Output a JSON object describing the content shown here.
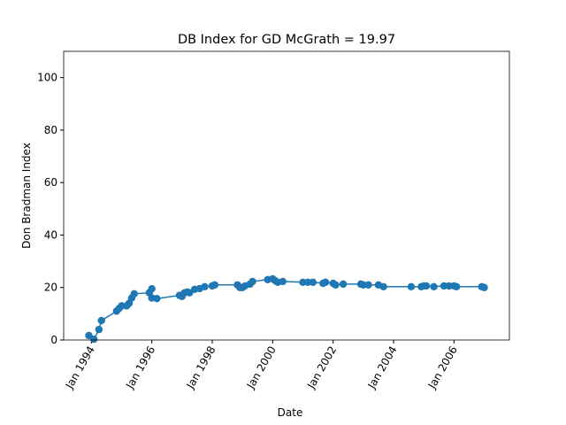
{
  "chart_data": {
    "type": "line",
    "title": "DB Index for GD McGrath = 19.97",
    "x_label": "Date",
    "y_label": "Don Bradman Index",
    "color": "#1f77b4",
    "markers": true,
    "x": [
      "1993-12",
      "1994-02",
      "1994-04",
      "1994-05",
      "1994-11",
      "1994-12",
      "1995-01",
      "1995-03",
      "1995-04",
      "1995-05",
      "1995-06",
      "1995-12",
      "1996-01",
      "1996-01",
      "1996-03",
      "1996-12",
      "1997-01",
      "1997-02",
      "1997-03",
      "1997-04",
      "1997-06",
      "1997-08",
      "1997-10",
      "1998-01",
      "1998-02",
      "1998-11",
      "1998-12",
      "1999-01",
      "1999-02",
      "1999-04",
      "1999-05",
      "1999-11",
      "2000-01",
      "2000-02",
      "2000-03",
      "2000-05",
      "2001-01",
      "2001-03",
      "2001-05",
      "2001-09",
      "2001-10",
      "2002-01",
      "2002-02",
      "2002-05",
      "2002-12",
      "2003-01",
      "2003-03",
      "2003-07",
      "2003-09",
      "2004-08",
      "2004-12",
      "2005-01",
      "2005-02",
      "2005-05",
      "2005-09",
      "2005-11",
      "2006-01",
      "2006-02",
      "2006-12",
      "2007-01"
    ],
    "values": [
      1.7,
      0.3,
      4,
      7.4,
      11,
      12,
      13,
      13,
      14,
      16,
      17.6,
      18,
      19.5,
      16,
      15.8,
      17,
      16.6,
      18,
      18.3,
      18,
      19.3,
      19.6,
      20.3,
      20.6,
      21,
      21,
      20,
      20,
      20.6,
      21.3,
      22.3,
      23,
      23.3,
      22.6,
      22,
      22.3,
      22,
      22,
      22,
      21.6,
      22,
      21.6,
      21,
      21.3,
      21.3,
      21,
      21,
      21,
      20.3,
      20.3,
      20.3,
      20.6,
      20.6,
      20.3,
      20.6,
      20.6,
      20.6,
      20.3,
      20.3,
      20
    ],
    "xlim": [
      "1993-02",
      "2007-11"
    ],
    "xticks": [
      {
        "value": "1994-01",
        "label": "Jan 1994"
      },
      {
        "value": "1996-01",
        "label": "Jan 1996"
      },
      {
        "value": "1998-01",
        "label": "Jan 1998"
      },
      {
        "value": "2000-01",
        "label": "Jan 2000"
      },
      {
        "value": "2002-01",
        "label": "Jan 2002"
      },
      {
        "value": "2004-01",
        "label": "Jan 2004"
      },
      {
        "value": "2006-01",
        "label": "Jan 2006"
      }
    ],
    "ylim": [
      0,
      110
    ],
    "yticks": [
      0,
      20,
      40,
      60,
      80,
      100
    ]
  }
}
